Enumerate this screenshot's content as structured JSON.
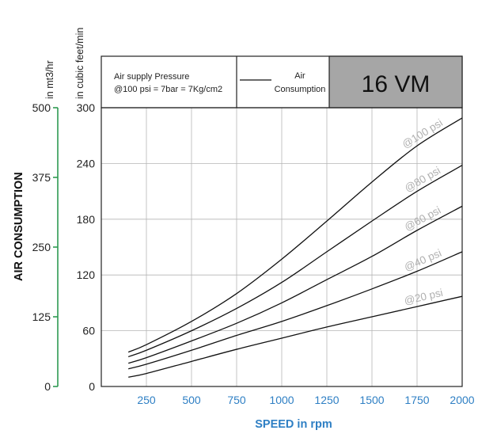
{
  "chart_data": {
    "type": "line",
    "xlabel": "SPEED in rpm",
    "ylabel": "AIR CONSUMPTION",
    "y_unit_left": "in mt3/hr",
    "y_unit_right": "in cubic feet/min",
    "xlim": [
      0,
      2000
    ],
    "ylim": [
      0,
      300
    ],
    "x_ticks": [
      250,
      500,
      750,
      1000,
      1250,
      1500,
      1750,
      2000
    ],
    "x_tick_labels": [
      "250",
      "500",
      "750",
      "1000",
      "1250",
      "1500",
      "1750",
      "2000"
    ],
    "y_ticks": [
      0,
      60,
      120,
      180,
      240,
      300
    ],
    "y_tick_labels": [
      "0",
      "60",
      "120",
      "180",
      "240",
      "300"
    ],
    "y2_ticks": [
      0,
      125,
      250,
      375,
      500
    ],
    "y2_tick_labels": [
      "0",
      "125",
      "250",
      "375",
      "500"
    ],
    "grid": true,
    "x": [
      150,
      250,
      500,
      750,
      1000,
      1250,
      1500,
      1750,
      2000
    ],
    "series": [
      {
        "name": "@100 psi",
        "values": [
          37,
          45,
          70,
          100,
          137,
          178,
          220,
          259,
          289
        ]
      },
      {
        "name": "@80 psi",
        "values": [
          32,
          39,
          60,
          84,
          112,
          145,
          178,
          210,
          238
        ]
      },
      {
        "name": "@60 psi",
        "values": [
          25,
          31,
          49,
          68,
          90,
          115,
          140,
          168,
          194
        ]
      },
      {
        "name": "@40 psi",
        "values": [
          19,
          24,
          39,
          55,
          70,
          87,
          105,
          124,
          145
        ]
      },
      {
        "name": "@20 psi",
        "values": [
          10,
          14,
          27,
          40,
          52,
          64,
          75,
          86,
          97
        ]
      }
    ]
  },
  "header": {
    "pressure_title": "Air supply Pressure",
    "pressure_note": "@100 psi = 7bar = 7Kg/cm2",
    "legend_label_line1": "Air",
    "legend_label_line2": "Consumption",
    "model": "16 VM",
    "model_bg": "#a6a6a6"
  }
}
